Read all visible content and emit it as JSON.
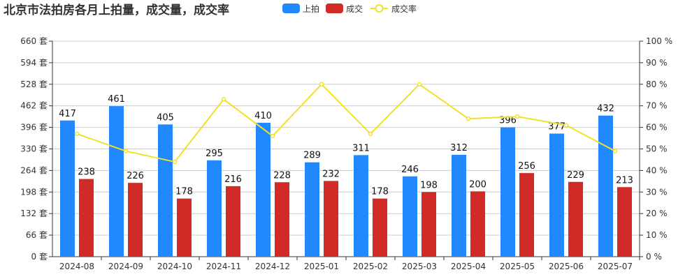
{
  "chart_data": {
    "type": "bar",
    "title": "北京市法拍房各月上拍量，成交量，成交率",
    "categories": [
      "2024-08",
      "2024-09",
      "2024-10",
      "2024-11",
      "2024-12",
      "2025-01",
      "2025-02",
      "2025-03",
      "2025-04",
      "2025-05",
      "2025-06",
      "2025-07"
    ],
    "series": [
      {
        "name": "上拍",
        "type": "bar",
        "color": "#2288ff",
        "values": [
          417,
          461,
          405,
          295,
          410,
          289,
          311,
          246,
          312,
          396,
          377,
          432
        ]
      },
      {
        "name": "成交",
        "type": "bar",
        "color": "#d12b27",
        "values": [
          238,
          226,
          178,
          216,
          228,
          232,
          178,
          198,
          200,
          256,
          229,
          213
        ]
      },
      {
        "name": "成交率",
        "type": "line",
        "color": "#f2e12a",
        "axis": "right",
        "values": [
          57,
          49,
          44,
          73,
          56,
          80,
          57,
          80,
          64,
          65,
          61,
          49
        ]
      }
    ],
    "y_left": {
      "range": [
        0,
        660
      ],
      "ticks": [
        0,
        66,
        132,
        198,
        264,
        330,
        396,
        462,
        528,
        594,
        660
      ],
      "unit": "套"
    },
    "y_right": {
      "range": [
        0,
        100
      ],
      "ticks": [
        0,
        10,
        20,
        30,
        40,
        50,
        60,
        70,
        80,
        90,
        100
      ],
      "unit": "%"
    },
    "grid": true,
    "legend_placement": "top-center"
  }
}
